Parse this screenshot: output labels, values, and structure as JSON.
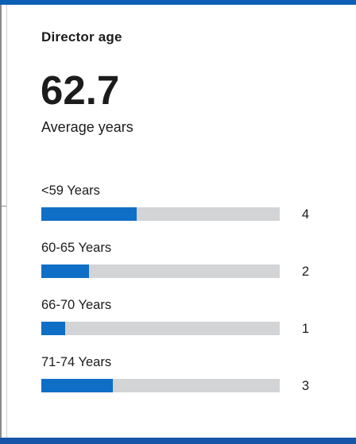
{
  "colors": {
    "accent": "#0f6fc6",
    "track": "#d3d4d6",
    "frame_top": "#0d5fb5",
    "frame_bottom": "#1655a8"
  },
  "card": {
    "title": "Director age",
    "average_value": "62.7",
    "average_label": "Average years"
  },
  "chart_data": {
    "type": "bar",
    "orientation": "horizontal",
    "categories": [
      "<59 Years",
      "60-65 Years",
      "66-70 Years",
      "71-74 Years"
    ],
    "values": [
      4,
      2,
      1,
      3
    ],
    "xlim": [
      0,
      10
    ],
    "grid": false
  }
}
